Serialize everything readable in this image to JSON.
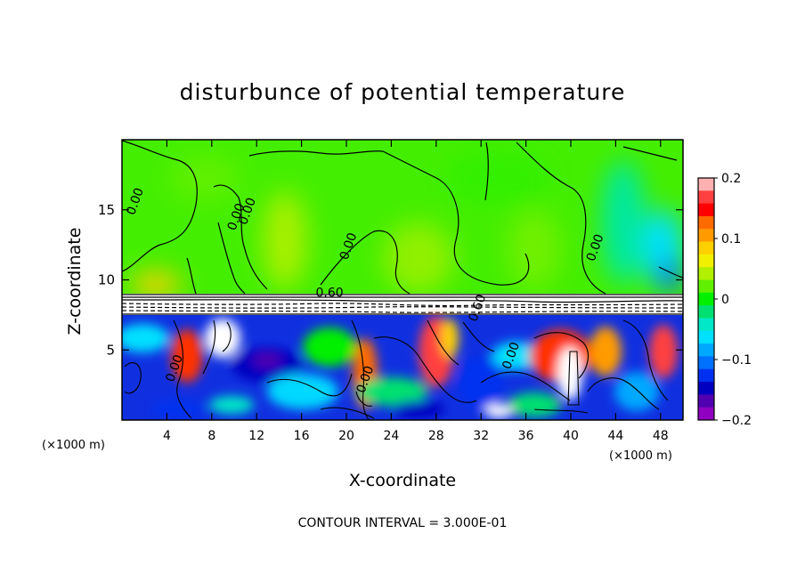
{
  "chart_data": {
    "type": "heatmap",
    "title": "disturbunce of potential temperature",
    "xlabel": "X-coordinate",
    "ylabel": "Z-coordinate",
    "x_unit_left": "(×1000 m)",
    "x_unit_right": "(×1000 m)",
    "footer": "CONTOUR INTERVAL = 3.000E-01",
    "xlim": [
      0,
      50
    ],
    "ylim": [
      0,
      20
    ],
    "x_ticks": [
      4,
      8,
      12,
      16,
      20,
      24,
      28,
      32,
      36,
      40,
      44,
      48
    ],
    "y_ticks": [
      5,
      10,
      15
    ],
    "colorbar": {
      "range": [
        -0.2,
        0.2
      ],
      "tick_values": [
        0.2,
        0.1,
        0,
        -0.1,
        -0.2
      ],
      "tick_labels": [
        "0.2",
        "0.1",
        "0",
        "−0.1",
        "−0.2"
      ],
      "colors": [
        "#ffb0b0",
        "#ff4040",
        "#ff0000",
        "#ff6a00",
        "#ff9b00",
        "#ffd000",
        "#f0f000",
        "#b0f000",
        "#60f000",
        "#00f000",
        "#00e070",
        "#00e8c8",
        "#00e0ff",
        "#00a8ff",
        "#0070ff",
        "#0030f0",
        "#0000c0",
        "#5000b0",
        "#9000c0"
      ]
    },
    "contour_labels": [
      {
        "text": "0.00",
        "x": 1.5,
        "z": 15.5
      },
      {
        "text": "0.00",
        "x": 10.5,
        "z": 14.4
      },
      {
        "text": "0.00",
        "x": 20.5,
        "z": 12.3
      },
      {
        "text": "0.00",
        "x": 42.5,
        "z": 12.2
      },
      {
        "text": "0.00",
        "x": 11.5,
        "z": 14.8
      },
      {
        "text": "0.60",
        "x": 18.5,
        "z": 8.8
      },
      {
        "text": "0.60",
        "x": 32.0,
        "z": 7.9
      },
      {
        "text": "0.00",
        "x": 5.0,
        "z": 3.6
      },
      {
        "text": "0.00",
        "x": 22.0,
        "z": 2.8
      },
      {
        "text": "0.00",
        "x": 35.0,
        "z": 4.5
      }
    ]
  }
}
